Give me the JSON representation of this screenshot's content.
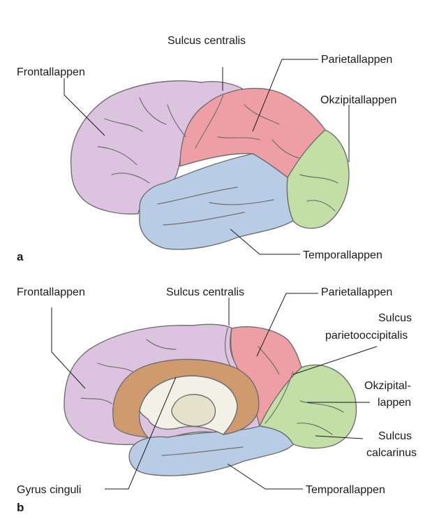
{
  "panel_a": {
    "letter": "a",
    "labels": {
      "sulcus_centralis": "Sulcus centralis",
      "frontallappen": "Frontallappen",
      "parietallappen": "Parietallappen",
      "okzipitallappen": "Okzipitallappen",
      "temporallappen": "Temporallappen"
    }
  },
  "panel_b": {
    "letter": "b",
    "labels": {
      "frontallappen": "Frontallappen",
      "sulcus_centralis": "Sulcus centralis",
      "parietallappen": "Parietallappen",
      "sulcus_parietooccipitalis_line1": "Sulcus",
      "sulcus_parietooccipitalis_line2": "parietooccipitalis",
      "okzipital_line1": "Okzipital-",
      "okzipital_line2": "lappen",
      "sulcus_calcarinus_line1": "Sulcus",
      "sulcus_calcarinus_line2": "calcarinus",
      "gyrus_cinguli": "Gyrus cinguli",
      "temporallappen": "Temporallappen"
    }
  },
  "colors": {
    "frontal": "#dcc3df",
    "parietal": "#ee9fa6",
    "occipital": "#c3dfa5",
    "temporal": "#b8cce6",
    "cingulate": "#cf9a6e",
    "ventricle": "#f3f1e6",
    "thalamus": "#e5e2cb"
  }
}
